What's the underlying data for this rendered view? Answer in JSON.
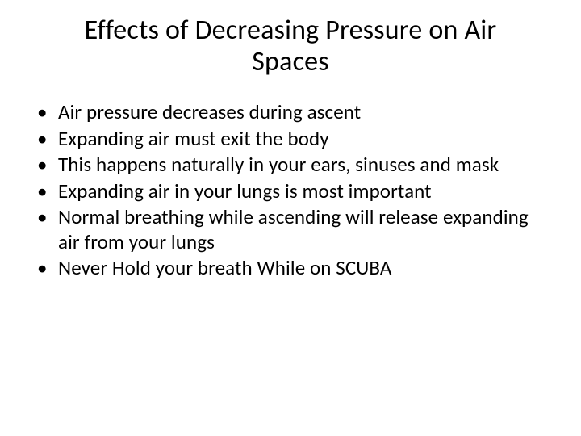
{
  "slide": {
    "title": "Effects of Decreasing Pressure on Air Spaces",
    "title_fontsize": 34,
    "title_color": "#000000",
    "background_color": "#ffffff",
    "bullets": [
      "Air pressure decreases during ascent",
      "Expanding air must exit the body",
      "This happens naturally in your ears, sinuses and mask",
      "Expanding air in your lungs is most important",
      "Normal breathing while ascending will release expanding air from your lungs",
      "Never Hold your breath While on SCUBA"
    ],
    "bullet_fontsize": 25,
    "bullet_color": "#000000",
    "font_family": "Calibri"
  }
}
